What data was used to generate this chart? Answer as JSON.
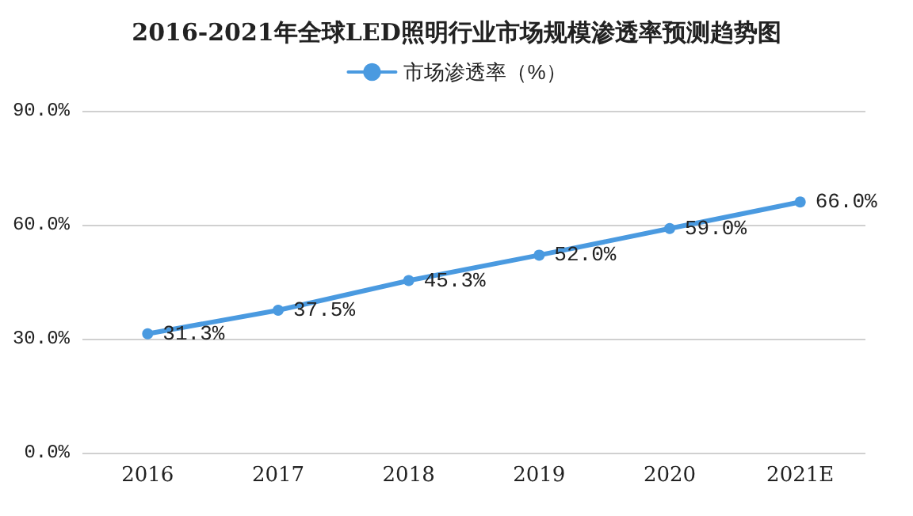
{
  "chart_data": {
    "type": "line",
    "title": "2016-2021年全球LED照明行业市场规模渗透率预测趋势图",
    "categories": [
      "2016",
      "2017",
      "2018",
      "2019",
      "2020",
      "2021E"
    ],
    "series": [
      {
        "name": "市场渗透率（%）",
        "color": "#4a9ae0",
        "values": [
          31.3,
          37.5,
          45.3,
          52.0,
          59.0,
          66.0
        ],
        "value_labels": [
          "31.3%",
          "37.5%",
          "45.3%",
          "52.0%",
          "59.0%",
          "66.0%"
        ]
      }
    ],
    "ylim": [
      0,
      90
    ],
    "yticks": [
      {
        "value": 0,
        "label": "0.0%"
      },
      {
        "value": 30,
        "label": "30.0%"
      },
      {
        "value": 60,
        "label": "60.0%"
      },
      {
        "value": 90,
        "label": "90.0%"
      }
    ],
    "grid": "y",
    "legend": "top",
    "marker": "circle",
    "line_style": "solid"
  }
}
